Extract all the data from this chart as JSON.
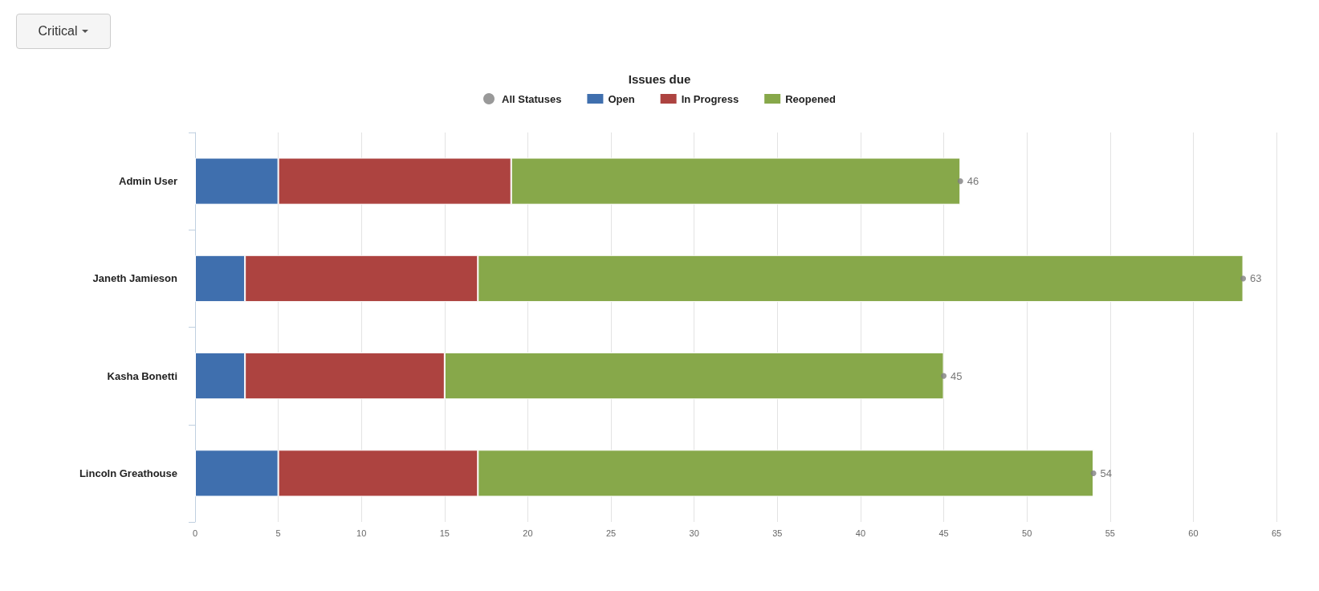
{
  "chart_data": {
    "type": "bar",
    "orientation": "horizontal",
    "stacked": true,
    "title": "Issues due",
    "annotations": [
      "Critical"
    ],
    "categories": [
      "Admin User",
      "Janeth Jamieson",
      "Kasha Bonetti",
      "Lincoln Greathouse"
    ],
    "series": [
      {
        "name": "All Statuses",
        "type": "scatter",
        "marker": "circle",
        "color": "#7f7f7f",
        "values": [
          46,
          63,
          45,
          54
        ],
        "value_labels": [
          "46",
          "63",
          "45",
          "54"
        ]
      },
      {
        "name": "Open",
        "color": "#3f6fae",
        "values": [
          5,
          3,
          3,
          5
        ]
      },
      {
        "name": "In Progress",
        "color": "#ad4340",
        "values": [
          14,
          14,
          12,
          12
        ]
      },
      {
        "name": "Reopened",
        "color": "#87a84a",
        "values": [
          27,
          46,
          30,
          37
        ]
      }
    ],
    "xlim": [
      0,
      65
    ],
    "xticks": [
      0,
      5,
      10,
      15,
      20,
      25,
      30,
      35,
      40,
      45,
      50,
      55,
      60,
      65
    ],
    "grid": "x",
    "legend": "top"
  }
}
